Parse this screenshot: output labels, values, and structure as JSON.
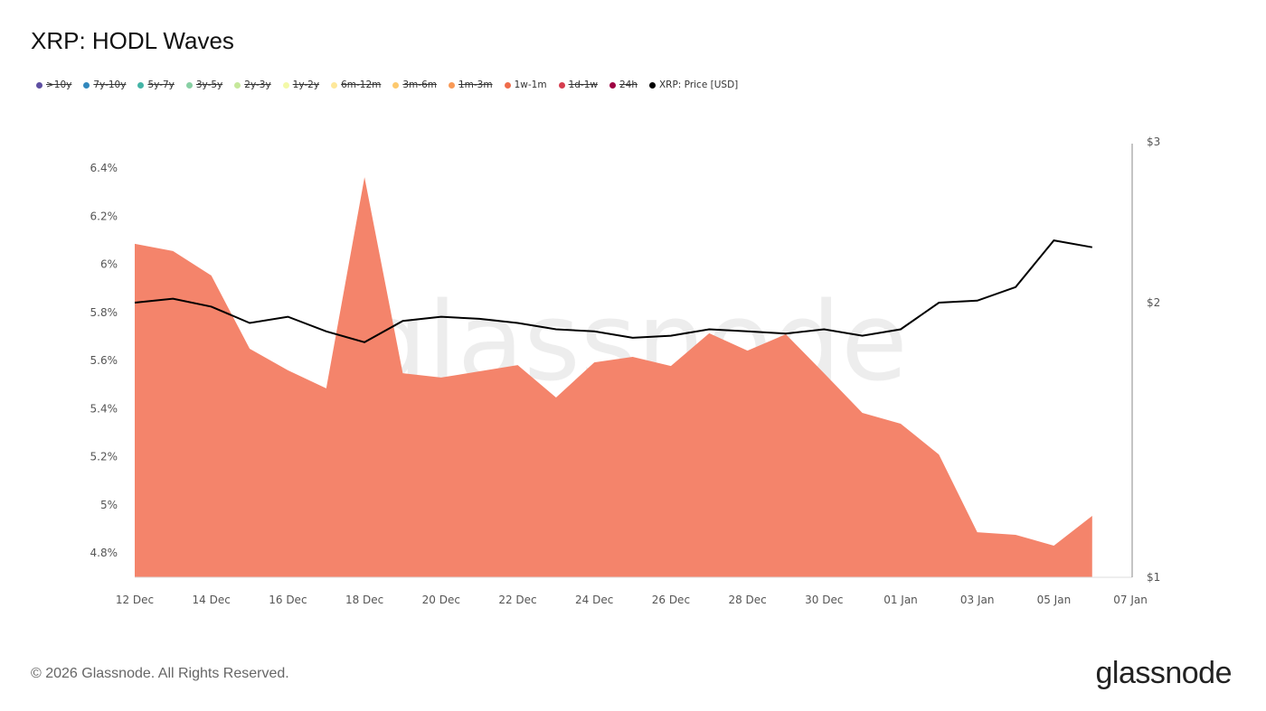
{
  "title": "XRP: HODL Waves",
  "legend": [
    {
      "label": ">10y",
      "color": "#5e4fa2",
      "active": false
    },
    {
      "label": "7y-10y",
      "color": "#3288bd",
      "active": false
    },
    {
      "label": "5y-7y",
      "color": "#44b4a6",
      "active": false
    },
    {
      "label": "3y-5y",
      "color": "#88d0a4",
      "active": false
    },
    {
      "label": "2y-3y",
      "color": "#c6e89b",
      "active": false
    },
    {
      "label": "1y-2y",
      "color": "#f3f9a8",
      "active": false
    },
    {
      "label": "6m-12m",
      "color": "#fee89a",
      "active": false
    },
    {
      "label": "3m-6m",
      "color": "#fdc96e",
      "active": false
    },
    {
      "label": "1m-3m",
      "color": "#f99a57",
      "active": false
    },
    {
      "label": "1w-1m",
      "color": "#ef6c4b",
      "active": true
    },
    {
      "label": "1d-1w",
      "color": "#d63e4f",
      "active": false
    },
    {
      "label": "24h",
      "color": "#9e0142",
      "active": false
    },
    {
      "label": "XRP: Price [USD]",
      "color": "#000000",
      "active": true
    }
  ],
  "chart_data": {
    "type": "area",
    "x": [
      "2025-12-12",
      "2025-12-13",
      "2025-12-14",
      "2025-12-15",
      "2025-12-16",
      "2025-12-17",
      "2025-12-18",
      "2025-12-19",
      "2025-12-20",
      "2025-12-21",
      "2025-12-22",
      "2025-12-23",
      "2025-12-24",
      "2025-12-25",
      "2025-12-26",
      "2025-12-27",
      "2025-12-28",
      "2025-12-29",
      "2025-12-30",
      "2025-12-31",
      "2026-01-01",
      "2026-01-02",
      "2026-01-03",
      "2026-01-04",
      "2026-01-05",
      "2026-01-06"
    ],
    "x_ticks": [
      "12 Dec",
      "14 Dec",
      "16 Dec",
      "18 Dec",
      "20 Dec",
      "22 Dec",
      "24 Dec",
      "26 Dec",
      "28 Dec",
      "30 Dec",
      "01 Jan",
      "03 Jan",
      "05 Jan",
      "07 Jan"
    ],
    "series": [
      {
        "name": "1w-1m",
        "axis": "left",
        "type": "area",
        "color": "#f4846b",
        "values": [
          6.085,
          6.055,
          5.953,
          5.649,
          5.559,
          5.484,
          6.362,
          5.547,
          5.529,
          5.555,
          5.581,
          5.446,
          5.592,
          5.615,
          5.577,
          5.713,
          5.641,
          5.709,
          5.547,
          5.382,
          5.337,
          5.209,
          4.886,
          4.875,
          4.83,
          4.954
        ]
      },
      {
        "name": "XRP: Price [USD]",
        "axis": "right",
        "type": "line",
        "color": "#000000",
        "values": [
          2.0,
          2.02,
          1.98,
          1.9,
          1.93,
          1.86,
          1.81,
          1.91,
          1.93,
          1.92,
          1.9,
          1.87,
          1.86,
          1.83,
          1.84,
          1.87,
          1.86,
          1.85,
          1.87,
          1.84,
          1.87,
          2.0,
          2.01,
          2.08,
          2.34,
          2.3
        ]
      }
    ],
    "y_left": {
      "ticks": [
        4.8,
        5.0,
        5.2,
        5.4,
        5.6,
        5.8,
        6.0,
        6.2,
        6.4
      ],
      "tick_labels": [
        "4.8%",
        "5%",
        "5.2%",
        "5.4%",
        "5.6%",
        "5.8%",
        "6%",
        "6.2%",
        "6.4%"
      ],
      "range": [
        4.7,
        6.52
      ]
    },
    "y_right": {
      "scale": "log",
      "ticks": [
        1,
        2,
        3
      ],
      "tick_labels": [
        "$1",
        "$2",
        "$3"
      ],
      "range": [
        1,
        3
      ]
    },
    "grid": false,
    "legend_position": "top-left",
    "watermark": "glassnode"
  },
  "footer": {
    "copyright": "© 2026 Glassnode. All Rights Reserved.",
    "logo": "glassnode"
  }
}
